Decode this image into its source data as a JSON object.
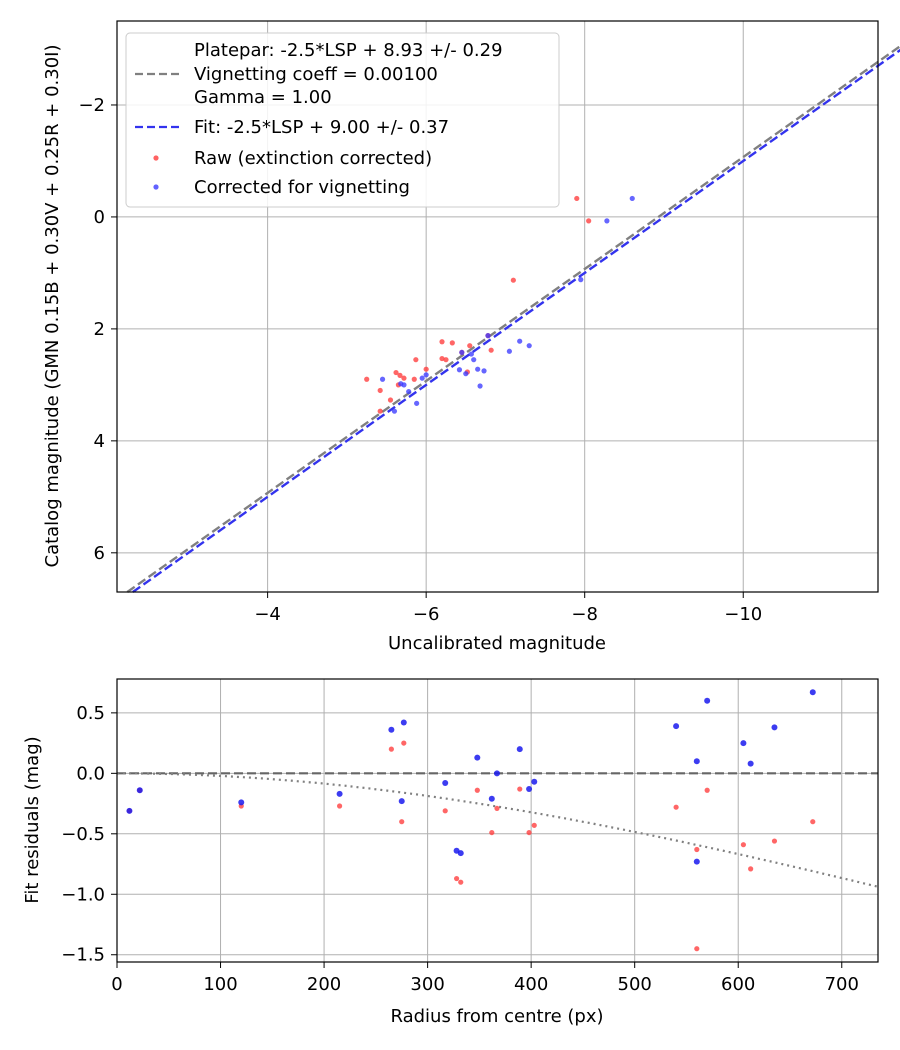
{
  "chart_data": [
    {
      "type": "scatter",
      "xlabel": "Uncalibrated magnitude",
      "ylabel": "Catalog magnitude (GMN 0.15B + 0.30V + 0.25R + 0.30I)",
      "xlim": [
        -2.1,
        -11.7
      ],
      "ylim": [
        -3.5,
        6.7
      ],
      "x_ticks": [
        -4,
        -6,
        -8,
        -10
      ],
      "x_tick_labels": [
        "−4",
        "−6",
        "−8",
        "−10"
      ],
      "y_ticks": [
        -2,
        0,
        2,
        4,
        6
      ],
      "y_tick_labels": [
        "−2",
        "0",
        "2",
        "4",
        "6"
      ],
      "grid": true,
      "legend_position": "upper-left",
      "legend": [
        "Platepar: -2.5*LSP + 8.93 +/- 0.29",
        "Vignetting coeff = 0.00100",
        "Gamma = 1.00",
        "Fit: -2.5*LSP + 9.00 +/- 0.37",
        "Raw (extinction corrected)",
        "Corrected for vignetting"
      ],
      "lines": [
        {
          "name": "Platepar",
          "slope": 1.0,
          "intercept": 8.93,
          "color": "#808080"
        },
        {
          "name": "Fit",
          "slope": 1.0,
          "intercept": 9.0,
          "color": "#3333ee"
        }
      ],
      "series": [
        {
          "name": "Raw (extinction corrected)",
          "color": "#ff3b3b",
          "x": [
            -7.9,
            -8.05,
            -7.1,
            -6.2,
            -6.33,
            -6.55,
            -6.45,
            -6.2,
            -6.25,
            -6.52,
            -6.82,
            -6.78,
            -5.25,
            -5.42,
            -5.62,
            -5.67,
            -5.72,
            -5.85,
            -6.0,
            -5.87,
            -5.65,
            -5.55,
            -5.42
          ],
          "y": [
            -0.33,
            0.07,
            1.13,
            2.23,
            2.25,
            2.3,
            2.42,
            2.53,
            2.55,
            2.77,
            2.38,
            2.12,
            2.9,
            3.1,
            2.78,
            2.83,
            2.88,
            2.9,
            2.72,
            2.55,
            3.0,
            3.27,
            3.47
          ]
        },
        {
          "name": "Corrected for vignetting",
          "color": "#3b3bff",
          "x": [
            -8.6,
            -8.28,
            -7.95,
            -7.3,
            -7.18,
            -7.05,
            -6.78,
            -6.73,
            -6.65,
            -6.6,
            -6.57,
            -6.45,
            -6.42,
            -6.5,
            -6.68,
            -6.0,
            -5.95,
            -5.88,
            -5.78,
            -5.72,
            -5.6,
            -5.45,
            -5.68
          ],
          "y": [
            -0.33,
            0.07,
            1.12,
            2.3,
            2.22,
            2.4,
            2.12,
            2.75,
            2.72,
            2.55,
            2.45,
            2.42,
            2.73,
            2.8,
            3.02,
            2.82,
            2.88,
            3.33,
            3.12,
            3.0,
            3.47,
            2.9,
            2.98
          ]
        }
      ]
    },
    {
      "type": "scatter",
      "xlabel": "Radius from centre (px)",
      "ylabel": "Fit residuals (mag)",
      "xlim": [
        0,
        735
      ],
      "ylim": [
        -1.56,
        0.78
      ],
      "x_ticks": [
        0,
        100,
        200,
        300,
        400,
        500,
        600,
        700
      ],
      "x_tick_labels": [
        "0",
        "100",
        "200",
        "300",
        "400",
        "500",
        "600",
        "700"
      ],
      "y_ticks": [
        0.5,
        0.0,
        -0.5,
        -1.0,
        -1.5
      ],
      "y_tick_labels": [
        "0.5",
        "0.0",
        "−0.5",
        "−1.0",
        "−1.5"
      ],
      "grid": true,
      "reference_lines": [
        {
          "name": "zero",
          "y": 0.0,
          "color": "#666666",
          "style": "dashed"
        },
        {
          "name": "vignetting",
          "coeff": 0.001,
          "color": "#808080",
          "style": "dotted"
        }
      ],
      "series": [
        {
          "name": "Raw (extinction corrected)",
          "color": "#ff3b3b",
          "x": [
            12,
            22,
            120,
            215,
            265,
            275,
            277,
            317,
            328,
            332,
            348,
            362,
            367,
            389,
            398,
            403,
            540,
            560,
            560,
            570,
            605,
            612,
            635,
            672
          ],
          "y": [
            -0.31,
            -0.14,
            -0.27,
            -0.27,
            0.2,
            -0.4,
            0.25,
            -0.31,
            -0.87,
            -0.9,
            -0.14,
            -0.49,
            -0.29,
            -0.13,
            -0.49,
            -0.43,
            -0.28,
            -0.63,
            -1.45,
            -0.14,
            -0.59,
            -0.79,
            -0.56,
            -0.4
          ]
        },
        {
          "name": "Corrected for vignetting",
          "color": "#1a1aee",
          "x": [
            12,
            22,
            120,
            215,
            265,
            275,
            277,
            317,
            328,
            332,
            348,
            362,
            367,
            389,
            398,
            403,
            540,
            560,
            560,
            570,
            605,
            612,
            635,
            672
          ],
          "y": [
            -0.31,
            -0.14,
            -0.24,
            -0.17,
            0.36,
            -0.23,
            0.42,
            -0.08,
            -0.64,
            -0.66,
            0.13,
            -0.21,
            0.0,
            0.2,
            -0.13,
            -0.07,
            0.39,
            0.1,
            -0.73,
            0.6,
            0.25,
            0.08,
            0.38,
            0.67
          ]
        }
      ]
    }
  ]
}
